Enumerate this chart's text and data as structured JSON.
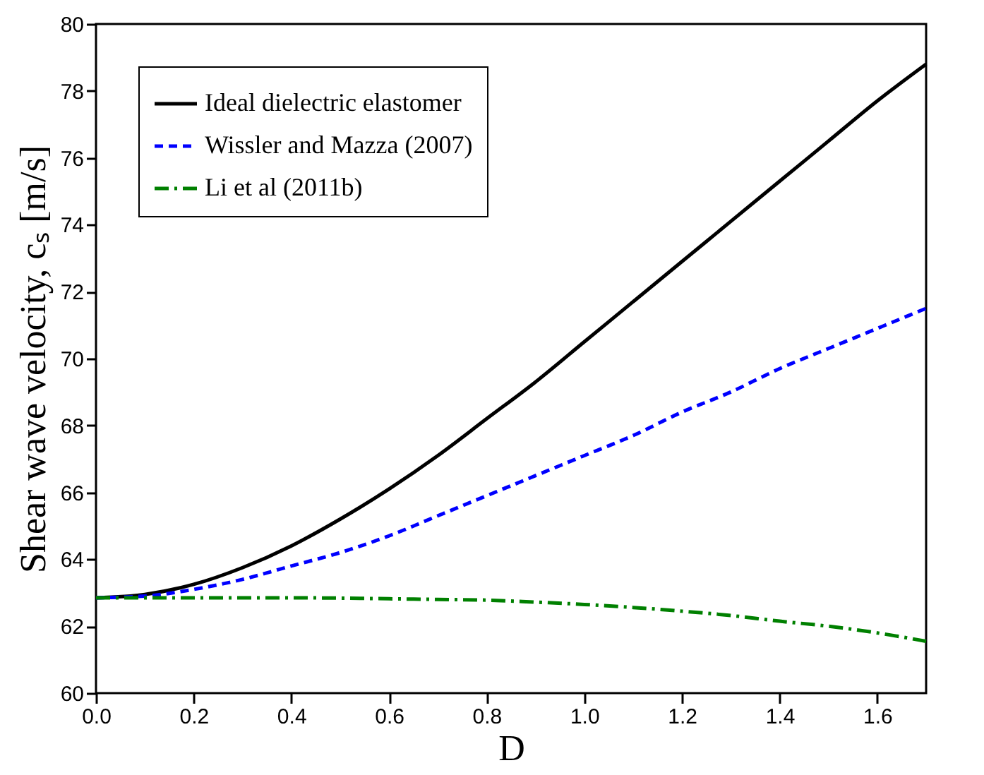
{
  "chart_data": {
    "type": "line",
    "xlabel": "D",
    "ylabel": "Shear wave velocity, cₛ [m/s]",
    "x": [
      0,
      0.1,
      0.2,
      0.3,
      0.4,
      0.5,
      0.6,
      0.7,
      0.8,
      0.9,
      1.0,
      1.1,
      1.2,
      1.3,
      1.4,
      1.5,
      1.6,
      1.7
    ],
    "series": [
      {
        "name": "Ideal dielectric elastomer",
        "color": "#000000",
        "line_style": "solid",
        "values": [
          62.85,
          62.95,
          63.25,
          63.75,
          64.4,
          65.2,
          66.1,
          67.1,
          68.2,
          69.3,
          70.5,
          71.7,
          72.9,
          74.1,
          75.3,
          76.5,
          77.7,
          78.8
        ]
      },
      {
        "name": "Wissler and Mazza (2007)",
        "color": "#0000ff",
        "line_style": "dashed",
        "values": [
          62.85,
          62.9,
          63.1,
          63.4,
          63.8,
          64.2,
          64.7,
          65.3,
          65.9,
          66.5,
          67.1,
          67.7,
          68.4,
          69.0,
          69.7,
          70.3,
          70.9,
          71.5
        ]
      },
      {
        "name": "Li et al (2011b)",
        "color": "#008000",
        "line_style": "dashdot",
        "values": [
          62.85,
          62.85,
          62.85,
          62.85,
          62.85,
          62.84,
          62.82,
          62.8,
          62.78,
          62.72,
          62.65,
          62.56,
          62.45,
          62.32,
          62.15,
          62.0,
          61.8,
          61.55
        ]
      }
    ],
    "xlim": [
      0,
      1.7
    ],
    "xticks": [
      {
        "value": 0,
        "label": "0.0"
      },
      0.2,
      0.4,
      0.6,
      0.8,
      {
        "value": 1,
        "label": "1.0"
      },
      1.2,
      1.4,
      1.6
    ],
    "ylim": [
      60,
      80
    ],
    "yticks": [
      60,
      62,
      64,
      66,
      68,
      70,
      72,
      74,
      76,
      78,
      80
    ],
    "legend": "top left",
    "grid": false
  }
}
